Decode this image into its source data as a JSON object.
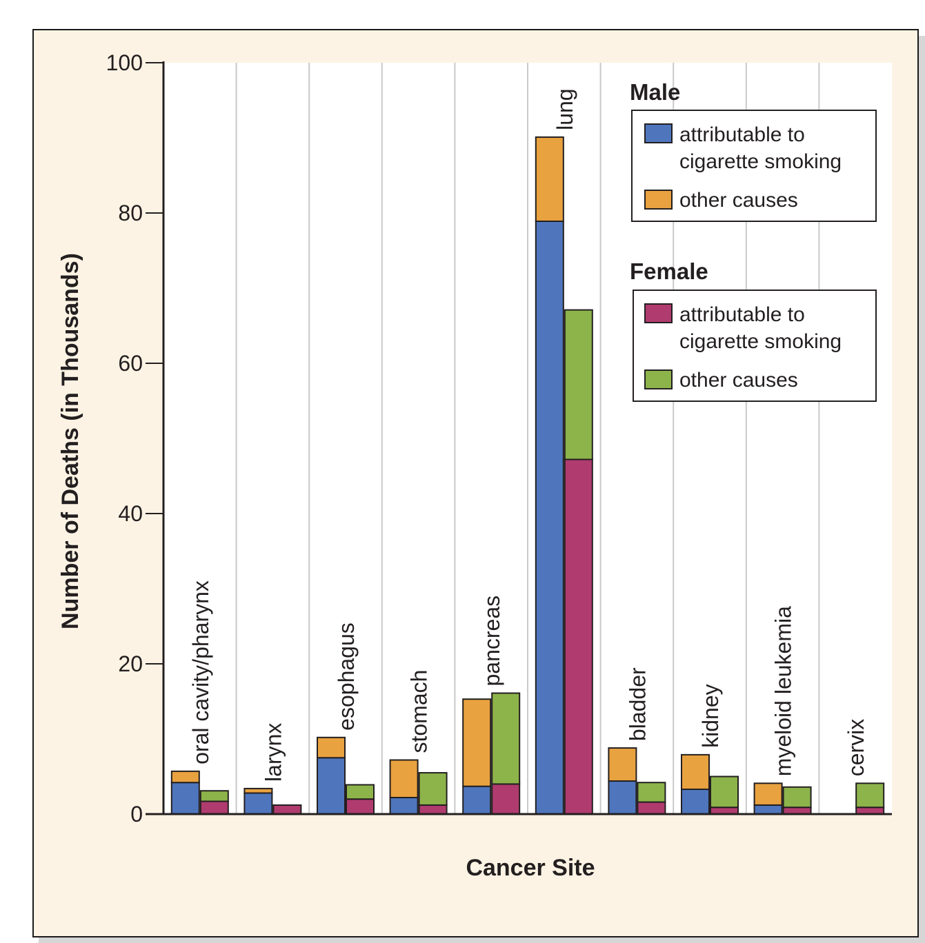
{
  "chart_data": {
    "type": "bar",
    "stacked": true,
    "title": "",
    "xlabel": "Cancer Site",
    "ylabel": "Number of Deaths (in Thousands)",
    "ylim": [
      0,
      100
    ],
    "yticks": [
      0,
      20,
      40,
      60,
      80,
      100
    ],
    "grid": "vertical separators between categories",
    "categories": [
      "oral cavity/pharynx",
      "larynx",
      "esophagus",
      "stomach",
      "pancreas",
      "lung",
      "bladder",
      "kidney",
      "myeloid leukemia",
      "cervix"
    ],
    "groups": [
      {
        "name": "Male",
        "series": [
          {
            "name": "attributable to cigarette smoking",
            "color": "#4f76bd",
            "values": [
              4.2,
              2.8,
              7.5,
              2.2,
              3.7,
              78.9,
              4.4,
              3.3,
              1.2,
              null
            ]
          },
          {
            "name": "other causes",
            "color": "#e8a23f",
            "values": [
              1.5,
              0.6,
              2.7,
              5.0,
              11.6,
              11.2,
              4.4,
              4.6,
              2.9,
              null
            ]
          }
        ]
      },
      {
        "name": "Female",
        "series": [
          {
            "name": "attributable to cigarette smoking",
            "color": "#b03b6e",
            "values": [
              1.7,
              1.2,
              2.0,
              1.2,
              4.0,
              47.2,
              1.6,
              0.9,
              0.9,
              0.9
            ]
          },
          {
            "name": "other causes",
            "color": "#8db34b",
            "values": [
              1.4,
              0.0,
              1.9,
              4.3,
              12.1,
              19.9,
              2.6,
              4.1,
              2.7,
              3.2
            ]
          }
        ]
      }
    ],
    "legend": {
      "placement": "top-right",
      "male_title": "Male",
      "female_title": "Female",
      "items": {
        "male_smoking": [
          "attributable to",
          "cigarette smoking"
        ],
        "male_other": [
          "other causes"
        ],
        "female_smoking": [
          "attributable to",
          "cigarette smoking"
        ],
        "female_other": [
          "other causes"
        ]
      }
    }
  }
}
